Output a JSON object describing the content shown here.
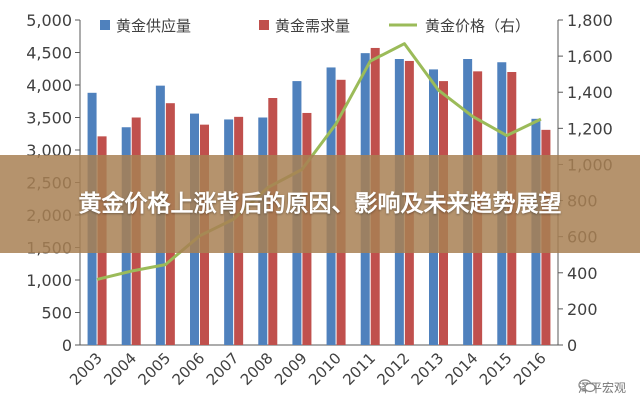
{
  "banner": {
    "title": "黄金价格上涨背后的原因、影响及未来趋势展望"
  },
  "watermark": {
    "text": "泽平宏观",
    "icon": "wechat-icon"
  },
  "colors": {
    "supply": "#4f81bd",
    "demand": "#c0504d",
    "price": "#9bbb59",
    "axis": "#595959",
    "grid": "#d9d9d9"
  },
  "chart_data": {
    "type": "bar",
    "categories": [
      "2003",
      "2004",
      "2005",
      "2006",
      "2007",
      "2008",
      "2009",
      "2010",
      "2011",
      "2012",
      "2013",
      "2014",
      "2015",
      "2016"
    ],
    "series": [
      {
        "name": "黄金供应量",
        "axis": "left",
        "values": [
          3880,
          3350,
          3990,
          3560,
          3470,
          3500,
          4060,
          4270,
          4490,
          4400,
          4240,
          4400,
          4350,
          3480
        ]
      },
      {
        "name": "黄金需求量",
        "axis": "left",
        "values": [
          3210,
          3500,
          3720,
          3390,
          3510,
          3800,
          3570,
          4080,
          4570,
          4370,
          4060,
          4210,
          4200,
          3310
        ]
      },
      {
        "name": "黄金价格（右）",
        "axis": "right",
        "type": "line",
        "values": [
          363,
          409,
          445,
          604,
          697,
          872,
          972,
          1225,
          1572,
          1669,
          1411,
          1266,
          1160,
          1251
        ]
      }
    ],
    "ylim_left": [
      0,
      5000
    ],
    "ylim_right": [
      0,
      1800
    ],
    "yticks_left": [
      "0",
      "500",
      "1,000",
      "1,500",
      "2,000",
      "2,500",
      "3,000",
      "3,500",
      "4,000",
      "4,500",
      "5,000"
    ],
    "yticks_right": [
      "0",
      "200",
      "400",
      "600",
      "800",
      "1,000",
      "1,200",
      "1,400",
      "1,600",
      "1,800"
    ],
    "legend_position": "top",
    "grid": false
  }
}
